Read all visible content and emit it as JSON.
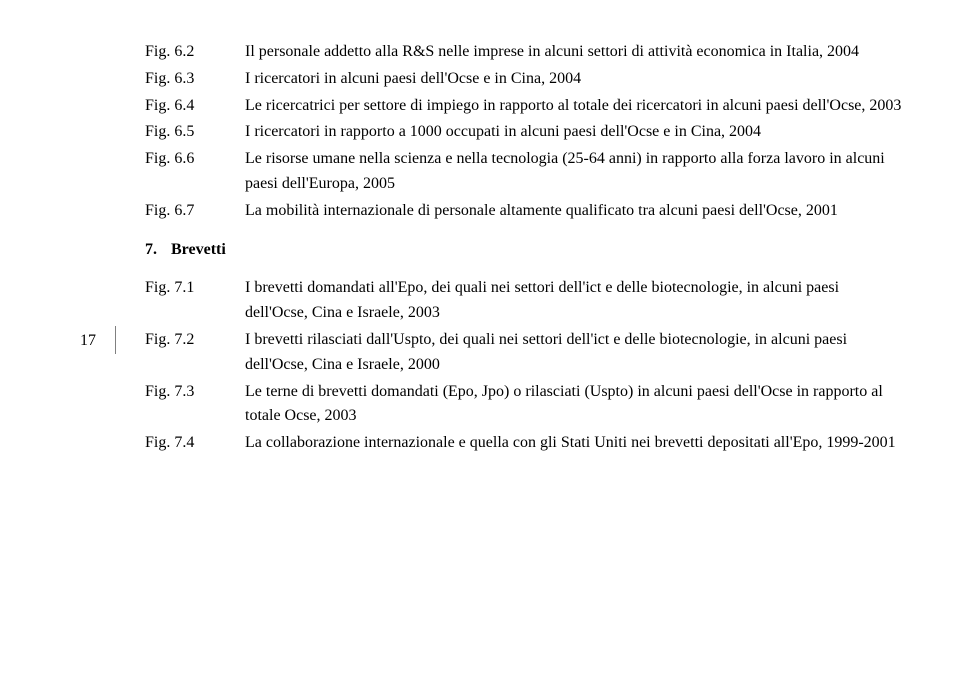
{
  "page_number": "17",
  "colors": {
    "text": "#000000",
    "background": "#ffffff",
    "divider": "#808080"
  },
  "typography": {
    "font_family": "Georgia, 'Times New Roman', serif",
    "body_fontsize": 16,
    "line_height": 1.55,
    "section_fontweight": "bold"
  },
  "section_a": {
    "items": [
      {
        "label": "Fig. 6.2",
        "desc": "Il personale addetto alla R&S nelle imprese in alcuni settori di attività economica in Italia, 2004"
      },
      {
        "label": "Fig. 6.3",
        "desc": "I ricercatori in alcuni paesi dell'Ocse e in Cina, 2004"
      },
      {
        "label": "Fig. 6.4",
        "desc": "Le ricercatrici per settore di impiego in rapporto al totale dei ricercatori in alcuni paesi dell'Ocse, 2003"
      },
      {
        "label": "Fig. 6.5",
        "desc": "I ricercatori in rapporto a 1000 occupati in alcuni paesi dell'Ocse e in Cina, 2004"
      },
      {
        "label": "Fig. 6.6",
        "desc": "Le risorse umane nella scienza e nella tecnologia (25-64 anni) in rapporto alla forza lavoro in alcuni paesi dell'Europa, 2005"
      },
      {
        "label": "Fig. 6.7",
        "desc": "La mobilità internazionale di personale altamente qualificato tra alcuni paesi dell'Ocse, 2001"
      }
    ]
  },
  "section_header": {
    "number": "7.",
    "title": "Brevetti"
  },
  "section_b": {
    "items": [
      {
        "label": "Fig. 7.1",
        "desc": "I brevetti domandati all'Epo, dei quali nei settori dell'ict e delle biotecnologie, in alcuni paesi dell'Ocse, Cina e Israele, 2003"
      },
      {
        "label": "Fig. 7.2",
        "desc": "I brevetti rilasciati dall'Uspto, dei quali nei settori dell'ict e delle biotecnologie, in alcuni paesi dell'Ocse, Cina e Israele, 2000"
      },
      {
        "label": "Fig. 7.3",
        "desc": "Le terne di brevetti domandati (Epo, Jpo) o rilasciati (Uspto) in alcuni paesi dell'Ocse in rapporto al totale Ocse, 2003"
      },
      {
        "label": "Fig. 7.4",
        "desc": "La collaborazione internazionale e quella con gli Stati Uniti nei brevetti depositati all'Epo, 1999-2001"
      }
    ]
  }
}
